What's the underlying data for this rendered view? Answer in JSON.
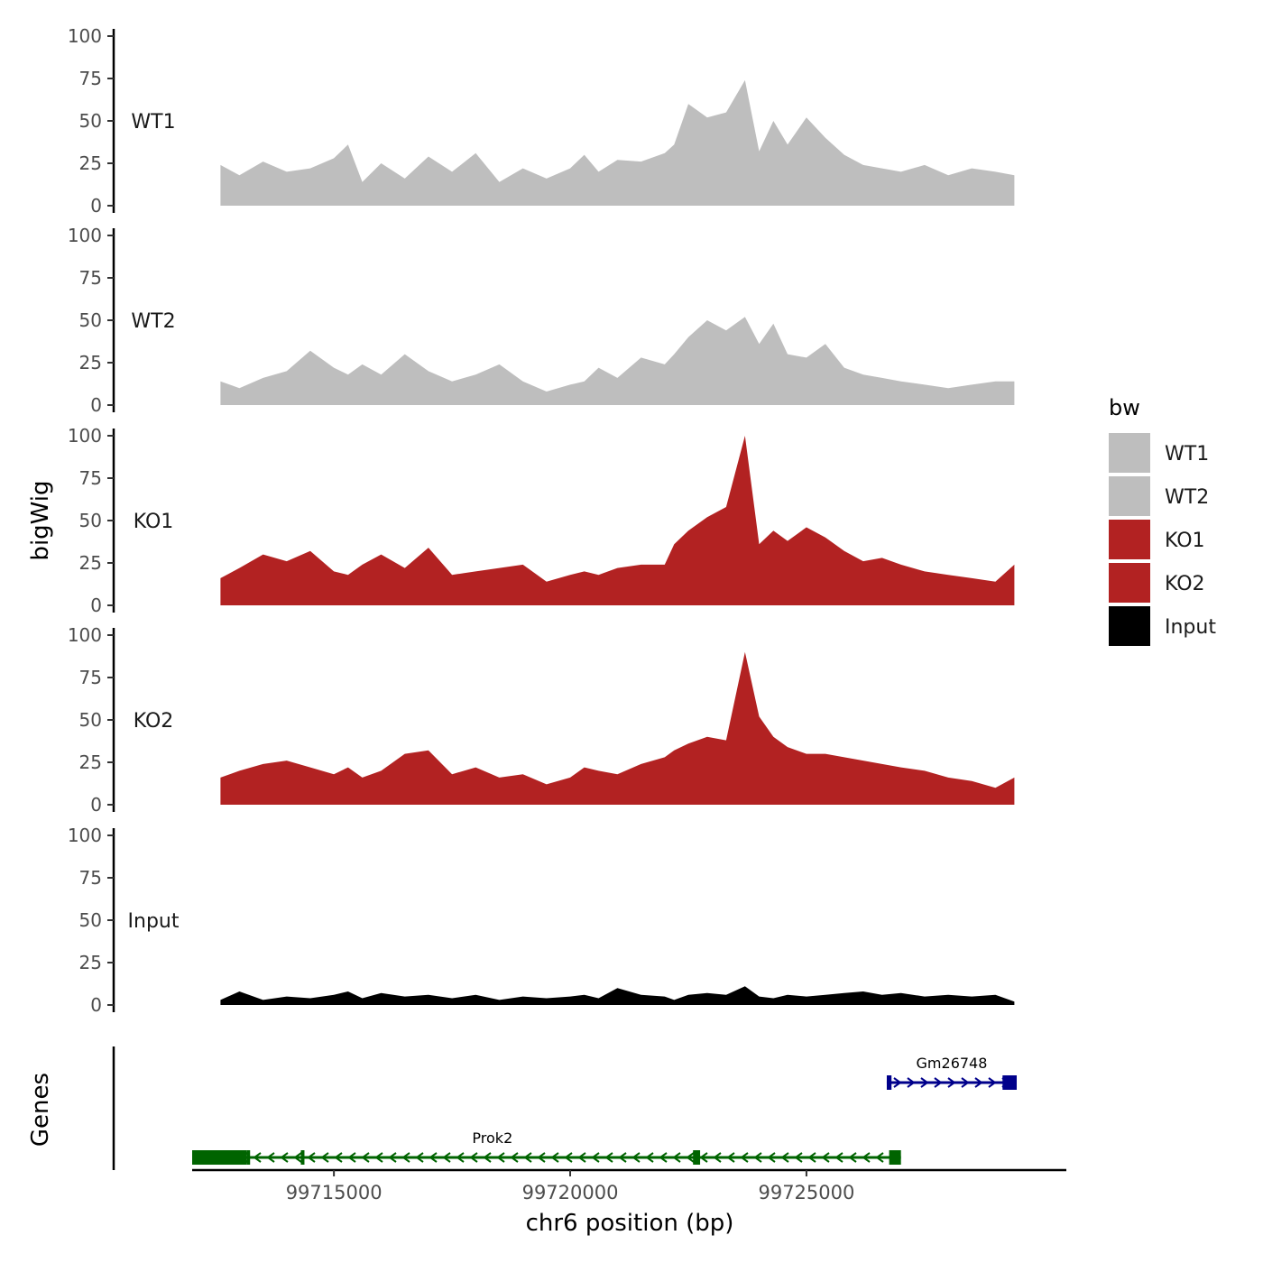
{
  "chart_data": {
    "type": "area",
    "ylabel": "bigWig",
    "genes_label": "Genes",
    "xlabel": "chr6 position (bp)",
    "xlim": [
      99712000,
      99730500
    ],
    "ylim": [
      0,
      100
    ],
    "yticks": [
      0,
      25,
      50,
      75,
      100
    ],
    "ytick_labels": [
      "0",
      "25",
      "50",
      "75",
      "100"
    ],
    "xticks": [
      99715000,
      99720000,
      99725000
    ],
    "xtick_labels": [
      "99715000",
      "99720000",
      "99725000"
    ],
    "legend": {
      "title": "bw",
      "position": "right",
      "entries": [
        {
          "label": "WT1",
          "color": "#bebebe"
        },
        {
          "label": "WT2",
          "color": "#bebebe"
        },
        {
          "label": "KO1",
          "color": "#b22222"
        },
        {
          "label": "KO2",
          "color": "#b22222"
        },
        {
          "label": "Input",
          "color": "#000000"
        }
      ]
    },
    "tracks": [
      {
        "name": "WT1",
        "color": "#bebebe",
        "x": [
          99712600,
          99713000,
          99713500,
          99714000,
          99714500,
          99715000,
          99715300,
          99715600,
          99716000,
          99716500,
          99717000,
          99717500,
          99718000,
          99718500,
          99719000,
          99719500,
          99720000,
          99720300,
          99720600,
          99721000,
          99721500,
          99722000,
          99722200,
          99722500,
          99722900,
          99723300,
          99723700,
          99724000,
          99724300,
          99724600,
          99725000,
          99725400,
          99725800,
          99726200,
          99726600,
          99727000,
          99727500,
          99728000,
          99728500,
          99729000,
          99729400
        ],
        "values": [
          24,
          18,
          26,
          20,
          22,
          28,
          36,
          14,
          25,
          16,
          29,
          20,
          31,
          14,
          22,
          16,
          22,
          30,
          20,
          27,
          26,
          31,
          36,
          60,
          52,
          55,
          74,
          32,
          50,
          36,
          52,
          40,
          30,
          24,
          22,
          20,
          24,
          18,
          22,
          20,
          18
        ]
      },
      {
        "name": "WT2",
        "color": "#bebebe",
        "x": [
          99712600,
          99713000,
          99713500,
          99714000,
          99714500,
          99715000,
          99715300,
          99715600,
          99716000,
          99716500,
          99717000,
          99717500,
          99718000,
          99718500,
          99719000,
          99719500,
          99720000,
          99720300,
          99720600,
          99721000,
          99721500,
          99722000,
          99722200,
          99722500,
          99722900,
          99723300,
          99723700,
          99724000,
          99724300,
          99724600,
          99725000,
          99725400,
          99725800,
          99726200,
          99726600,
          99727000,
          99727500,
          99728000,
          99728500,
          99729000,
          99729400
        ],
        "values": [
          14,
          10,
          16,
          20,
          32,
          22,
          18,
          24,
          18,
          30,
          20,
          14,
          18,
          24,
          14,
          8,
          12,
          14,
          22,
          16,
          28,
          24,
          30,
          40,
          50,
          44,
          52,
          36,
          48,
          30,
          28,
          36,
          22,
          18,
          16,
          14,
          12,
          10,
          12,
          14,
          14
        ]
      },
      {
        "name": "KO1",
        "color": "#b22222",
        "x": [
          99712600,
          99713000,
          99713500,
          99714000,
          99714500,
          99715000,
          99715300,
          99715600,
          99716000,
          99716500,
          99717000,
          99717500,
          99718000,
          99718500,
          99719000,
          99719500,
          99720000,
          99720300,
          99720600,
          99721000,
          99721500,
          99722000,
          99722200,
          99722500,
          99722900,
          99723300,
          99723700,
          99724000,
          99724300,
          99724600,
          99725000,
          99725400,
          99725800,
          99726200,
          99726600,
          99727000,
          99727500,
          99728000,
          99728500,
          99729000,
          99729400
        ],
        "values": [
          16,
          22,
          30,
          26,
          32,
          20,
          18,
          24,
          30,
          22,
          34,
          18,
          20,
          22,
          24,
          14,
          18,
          20,
          18,
          22,
          24,
          24,
          36,
          44,
          52,
          58,
          100,
          36,
          44,
          38,
          46,
          40,
          32,
          26,
          28,
          24,
          20,
          18,
          16,
          14,
          24
        ]
      },
      {
        "name": "KO2",
        "color": "#b22222",
        "x": [
          99712600,
          99713000,
          99713500,
          99714000,
          99714500,
          99715000,
          99715300,
          99715600,
          99716000,
          99716500,
          99717000,
          99717500,
          99718000,
          99718500,
          99719000,
          99719500,
          99720000,
          99720300,
          99720600,
          99721000,
          99721500,
          99722000,
          99722200,
          99722500,
          99722900,
          99723300,
          99723700,
          99724000,
          99724300,
          99724600,
          99725000,
          99725400,
          99725800,
          99726200,
          99726600,
          99727000,
          99727500,
          99728000,
          99728500,
          99729000,
          99729400
        ],
        "values": [
          16,
          20,
          24,
          26,
          22,
          18,
          22,
          16,
          20,
          30,
          32,
          18,
          22,
          16,
          18,
          12,
          16,
          22,
          20,
          18,
          24,
          28,
          32,
          36,
          40,
          38,
          90,
          52,
          40,
          34,
          30,
          30,
          28,
          26,
          24,
          22,
          20,
          16,
          14,
          10,
          16
        ]
      },
      {
        "name": "Input",
        "color": "#000000",
        "x": [
          99712600,
          99713000,
          99713500,
          99714000,
          99714500,
          99715000,
          99715300,
          99715600,
          99716000,
          99716500,
          99717000,
          99717500,
          99718000,
          99718500,
          99719000,
          99719500,
          99720000,
          99720300,
          99720600,
          99721000,
          99721500,
          99722000,
          99722200,
          99722500,
          99722900,
          99723300,
          99723700,
          99724000,
          99724300,
          99724600,
          99725000,
          99725400,
          99725800,
          99726200,
          99726600,
          99727000,
          99727500,
          99728000,
          99728500,
          99729000,
          99729400
        ],
        "values": [
          3,
          8,
          3,
          5,
          4,
          6,
          8,
          4,
          7,
          5,
          6,
          4,
          6,
          3,
          5,
          4,
          5,
          6,
          4,
          10,
          6,
          5,
          3,
          6,
          7,
          6,
          11,
          5,
          4,
          6,
          5,
          6,
          7,
          8,
          6,
          7,
          5,
          6,
          5,
          6,
          2
        ]
      }
    ],
    "genes": [
      {
        "name": "Prok2",
        "color": "#006400",
        "strand": "-",
        "start": 99712000,
        "end": 99727000,
        "exons": [
          [
            99712000,
            99713150
          ],
          [
            99713150,
            99713200
          ],
          [
            99714300,
            99714350
          ],
          [
            99722600,
            99722750
          ],
          [
            99726750,
            99727000
          ]
        ]
      },
      {
        "name": "Gm26748",
        "color": "#00008b",
        "strand": "+",
        "start": 99726700,
        "end": 99729450,
        "exons": [
          [
            99726700,
            99726800
          ],
          [
            99729150,
            99729450
          ]
        ]
      }
    ]
  }
}
